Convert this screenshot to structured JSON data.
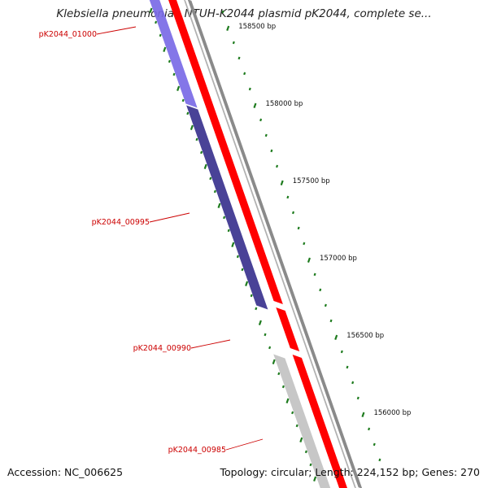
{
  "title": "Klebsiella pneumoniae NTUH-K2044 plasmid pK2044, complete se...",
  "accession": "Accession: NC_006625",
  "topology": "Topology: circular; Length: 224,152 bp; Genes: 270",
  "colors": {
    "plus_strand_gene": "#ff0000",
    "minus_strand_gene_light": "#7a6ae6",
    "minus_strand_gene_dark": "#3f3891",
    "minus_strand_gene_gray": "#c4c4c4",
    "backbone": "#8a8a8a",
    "gc_ticks": "#1e7b1e",
    "gene_label": "#cc0000"
  },
  "genes": [
    {
      "label": "pK2044_01000",
      "strand": "minus",
      "color": "#7a6ae6"
    },
    {
      "label": "pK2044_00995",
      "strand": "minus",
      "color": "#3f3891"
    },
    {
      "label": "pK2044_00990",
      "strand": "plus",
      "color": "#ff0000"
    },
    {
      "label": "pK2044_00985",
      "strand": "minus",
      "color": "#c4c4c4"
    }
  ],
  "ruler": [
    {
      "label": "158500 bp",
      "bp": 158500
    },
    {
      "label": "158000 bp",
      "bp": 158000
    },
    {
      "label": "157500 bp",
      "bp": 157500
    },
    {
      "label": "157000 bp",
      "bp": 157000
    },
    {
      "label": "156500 bp",
      "bp": 156500
    },
    {
      "label": "156000 bp",
      "bp": 156000
    }
  ]
}
